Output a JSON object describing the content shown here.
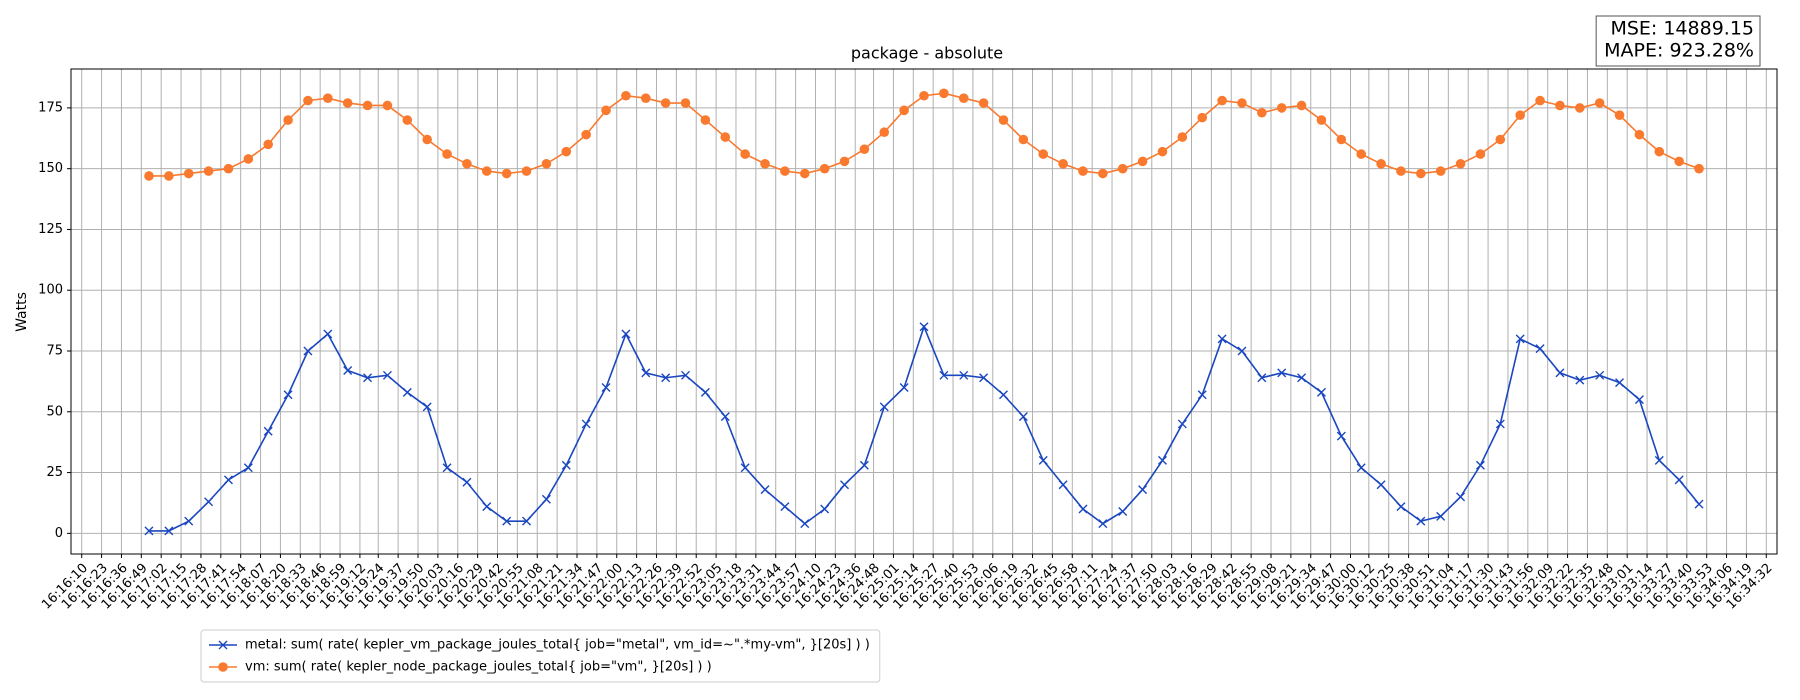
{
  "chart_data": {
    "type": "line",
    "title": "package - absolute",
    "ylabel": "Watts",
    "annotation": [
      "MSE: 14889.15",
      "MAPE: 923.28%"
    ],
    "grid": true,
    "legend": "lower left",
    "xlim": [
      "16:16:03",
      "16:34:39"
    ],
    "ylim": [
      -8.5,
      191
    ],
    "yticks": [
      0,
      25,
      50,
      75,
      100,
      125,
      150,
      175
    ],
    "xticks": [
      "16:16:10",
      "16:16:23",
      "16:16:36",
      "16:16:49",
      "16:17:02",
      "16:17:15",
      "16:17:28",
      "16:17:41",
      "16:17:54",
      "16:18:07",
      "16:18:20",
      "16:18:33",
      "16:18:46",
      "16:18:59",
      "16:19:12",
      "16:19:24",
      "16:19:37",
      "16:19:50",
      "16:20:03",
      "16:20:16",
      "16:20:29",
      "16:20:42",
      "16:20:55",
      "16:21:08",
      "16:21:21",
      "16:21:34",
      "16:21:47",
      "16:22:00",
      "16:22:13",
      "16:22:26",
      "16:22:39",
      "16:22:52",
      "16:23:05",
      "16:23:18",
      "16:23:31",
      "16:23:44",
      "16:23:57",
      "16:24:10",
      "16:24:23",
      "16:24:36",
      "16:24:48",
      "16:25:01",
      "16:25:14",
      "16:25:27",
      "16:25:40",
      "16:25:53",
      "16:26:06",
      "16:26:19",
      "16:26:32",
      "16:26:45",
      "16:26:58",
      "16:27:11",
      "16:27:24",
      "16:27:37",
      "16:27:50",
      "16:28:03",
      "16:28:16",
      "16:28:29",
      "16:28:42",
      "16:28:55",
      "16:29:08",
      "16:29:21",
      "16:29:34",
      "16:29:47",
      "16:30:00",
      "16:30:12",
      "16:30:25",
      "16:30:38",
      "16:30:51",
      "16:31:04",
      "16:31:17",
      "16:31:30",
      "16:31:43",
      "16:31:56",
      "16:32:09",
      "16:32:22",
      "16:32:35",
      "16:32:48",
      "16:33:01",
      "16:33:14",
      "16:33:27",
      "16:33:40",
      "16:33:53",
      "16:34:06",
      "16:34:19",
      "16:34:32"
    ],
    "x": [
      "16:16:54",
      "16:17:07",
      "16:17:20",
      "16:17:33",
      "16:17:46",
      "16:17:59",
      "16:18:12",
      "16:18:25",
      "16:18:38",
      "16:18:51",
      "16:19:04",
      "16:19:17",
      "16:19:30",
      "16:19:43",
      "16:19:56",
      "16:20:09",
      "16:20:22",
      "16:20:35",
      "16:20:48",
      "16:21:01",
      "16:21:14",
      "16:21:27",
      "16:21:40",
      "16:21:53",
      "16:22:06",
      "16:22:19",
      "16:22:32",
      "16:22:45",
      "16:22:58",
      "16:23:11",
      "16:23:24",
      "16:23:37",
      "16:23:50",
      "16:24:03",
      "16:24:16",
      "16:24:29",
      "16:24:42",
      "16:24:55",
      "16:25:08",
      "16:25:21",
      "16:25:34",
      "16:25:47",
      "16:26:00",
      "16:26:13",
      "16:26:26",
      "16:26:39",
      "16:26:52",
      "16:27:05",
      "16:27:18",
      "16:27:31",
      "16:27:44",
      "16:27:57",
      "16:28:10",
      "16:28:23",
      "16:28:36",
      "16:28:49",
      "16:29:02",
      "16:29:15",
      "16:29:28",
      "16:29:41",
      "16:29:54",
      "16:30:07",
      "16:30:20",
      "16:30:33",
      "16:30:46",
      "16:30:59",
      "16:31:12",
      "16:31:25",
      "16:31:38",
      "16:31:51",
      "16:32:04",
      "16:32:17",
      "16:32:30",
      "16:32:43",
      "16:32:56",
      "16:33:09",
      "16:33:22",
      "16:33:35",
      "16:33:48"
    ],
    "series": [
      {
        "name": "metal: sum( rate( kepler_vm_package_joules_total{ job=\"metal\", vm_id=~\".*my-vm\", }[20s] ) )",
        "color": "#1a47c0",
        "marker": "x",
        "values": [
          1,
          1,
          5,
          13,
          22,
          27,
          42,
          57,
          75,
          82,
          67,
          64,
          65,
          58,
          52,
          27,
          21,
          11,
          5,
          5,
          14,
          28,
          45,
          60,
          82,
          66,
          64,
          65,
          58,
          48,
          27,
          18,
          11,
          4,
          10,
          20,
          28,
          52,
          60,
          85,
          65,
          65,
          64,
          57,
          48,
          30,
          20,
          10,
          4,
          9,
          18,
          30,
          45,
          57,
          80,
          75,
          64,
          66,
          64,
          58,
          40,
          27,
          20,
          11,
          5,
          7,
          15,
          28,
          45,
          80,
          76,
          66,
          63,
          65,
          62,
          55,
          30,
          22,
          12
        ]
      },
      {
        "name": "vm: sum( rate( kepler_node_package_joules_total{ job=\"vm\", }[20s] ) )",
        "color": "#f97a2f",
        "marker": "o",
        "values": [
          147,
          147,
          148,
          149,
          150,
          154,
          160,
          170,
          178,
          179,
          177,
          176,
          176,
          170,
          162,
          156,
          152,
          149,
          148,
          149,
          152,
          157,
          164,
          174,
          180,
          179,
          177,
          177,
          170,
          163,
          156,
          152,
          149,
          148,
          150,
          153,
          158,
          165,
          174,
          180,
          181,
          179,
          177,
          170,
          162,
          156,
          152,
          149,
          148,
          150,
          153,
          157,
          163,
          171,
          178,
          177,
          173,
          175,
          176,
          170,
          162,
          156,
          152,
          149,
          148,
          149,
          152,
          156,
          162,
          172,
          178,
          176,
          175,
          177,
          172,
          164,
          157,
          153,
          150
        ]
      }
    ]
  }
}
